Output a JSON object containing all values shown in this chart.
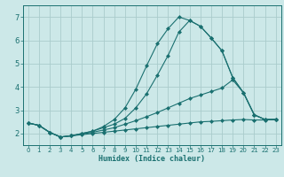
{
  "xlabel": "Humidex (Indice chaleur)",
  "bg_color": "#cce8e8",
  "grid_color": "#aacccc",
  "line_color": "#1a7070",
  "xlim": [
    -0.5,
    23.5
  ],
  "ylim": [
    1.5,
    7.5
  ],
  "xticks": [
    0,
    1,
    2,
    3,
    4,
    5,
    6,
    7,
    8,
    9,
    10,
    11,
    12,
    13,
    14,
    15,
    16,
    17,
    18,
    19,
    20,
    21,
    22,
    23
  ],
  "yticks": [
    2,
    3,
    4,
    5,
    6,
    7
  ],
  "lines": [
    {
      "x": [
        0,
        1,
        2,
        3,
        4,
        5,
        6,
        7,
        8,
        9,
        10,
        11,
        12,
        13,
        14,
        15,
        16,
        17,
        18,
        19,
        20,
        21,
        22,
        23
      ],
      "y": [
        2.45,
        2.35,
        2.05,
        1.85,
        1.9,
        1.95,
        2.0,
        2.05,
        2.1,
        2.15,
        2.2,
        2.25,
        2.3,
        2.35,
        2.4,
        2.45,
        2.5,
        2.52,
        2.55,
        2.58,
        2.6,
        2.58,
        2.58,
        2.6
      ]
    },
    {
      "x": [
        0,
        1,
        2,
        3,
        4,
        5,
        6,
        7,
        8,
        9,
        10,
        11,
        12,
        13,
        14,
        15,
        16,
        17,
        18,
        19,
        20,
        21,
        22,
        23
      ],
      "y": [
        2.45,
        2.35,
        2.05,
        1.85,
        1.9,
        1.98,
        2.05,
        2.15,
        2.25,
        2.4,
        2.55,
        2.72,
        2.9,
        3.1,
        3.3,
        3.5,
        3.65,
        3.8,
        3.95,
        4.3,
        3.75,
        2.8,
        2.6,
        2.6
      ]
    },
    {
      "x": [
        0,
        1,
        2,
        3,
        4,
        5,
        6,
        7,
        8,
        9,
        10,
        11,
        12,
        13,
        14,
        15,
        16,
        17,
        18,
        19,
        20,
        21,
        22,
        23
      ],
      "y": [
        2.45,
        2.35,
        2.05,
        1.85,
        1.9,
        2.0,
        2.1,
        2.25,
        2.4,
        2.65,
        3.1,
        3.7,
        4.5,
        5.35,
        6.35,
        6.85,
        6.6,
        6.1,
        5.55,
        4.4,
        3.75,
        2.8,
        2.6,
        2.6
      ]
    },
    {
      "x": [
        0,
        1,
        2,
        3,
        4,
        5,
        6,
        7,
        8,
        9,
        10,
        11,
        12,
        13,
        14,
        15,
        16,
        17,
        18,
        19,
        20,
        21,
        22,
        23
      ],
      "y": [
        2.45,
        2.35,
        2.05,
        1.85,
        1.9,
        2.0,
        2.1,
        2.3,
        2.6,
        3.1,
        3.9,
        4.9,
        5.85,
        6.5,
        7.0,
        6.85,
        6.6,
        6.1,
        5.55,
        4.4,
        3.75,
        2.8,
        2.6,
        2.6
      ]
    }
  ]
}
